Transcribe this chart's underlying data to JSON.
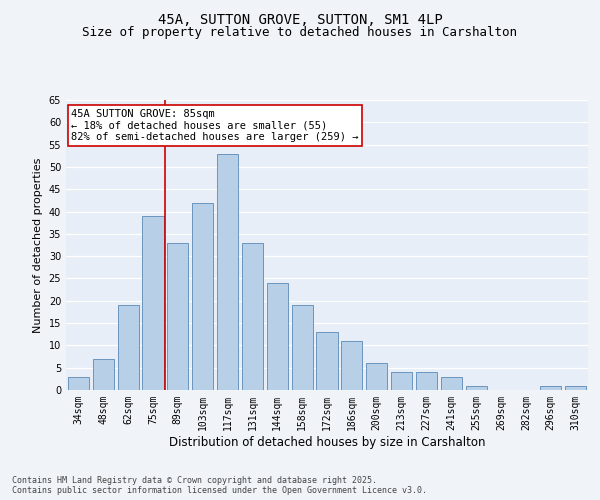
{
  "title": "45A, SUTTON GROVE, SUTTON, SM1 4LP",
  "subtitle": "Size of property relative to detached houses in Carshalton",
  "xlabel": "Distribution of detached houses by size in Carshalton",
  "ylabel": "Number of detached properties",
  "categories": [
    "34sqm",
    "48sqm",
    "62sqm",
    "75sqm",
    "89sqm",
    "103sqm",
    "117sqm",
    "131sqm",
    "144sqm",
    "158sqm",
    "172sqm",
    "186sqm",
    "200sqm",
    "213sqm",
    "227sqm",
    "241sqm",
    "255sqm",
    "269sqm",
    "282sqm",
    "296sqm",
    "310sqm"
  ],
  "values": [
    3,
    7,
    19,
    39,
    33,
    42,
    53,
    33,
    24,
    19,
    13,
    11,
    6,
    4,
    4,
    3,
    1,
    0,
    0,
    1,
    1
  ],
  "bar_color": "#b8cfe8",
  "bar_edge_color": "#5a8ab5",
  "vline_x": 3.5,
  "vline_color": "#cc0000",
  "annotation_text": "45A SUTTON GROVE: 85sqm\n← 18% of detached houses are smaller (55)\n82% of semi-detached houses are larger (259) →",
  "annotation_box_color": "#ffffff",
  "annotation_box_edge": "#cc0000",
  "ylim": [
    0,
    65
  ],
  "yticks": [
    0,
    5,
    10,
    15,
    20,
    25,
    30,
    35,
    40,
    45,
    50,
    55,
    60,
    65
  ],
  "bg_color": "#e8eef7",
  "grid_color": "#ffffff",
  "footer": "Contains HM Land Registry data © Crown copyright and database right 2025.\nContains public sector information licensed under the Open Government Licence v3.0.",
  "title_fontsize": 10,
  "subtitle_fontsize": 9,
  "xlabel_fontsize": 8.5,
  "ylabel_fontsize": 8,
  "tick_fontsize": 7,
  "annotation_fontsize": 7.5,
  "footer_fontsize": 6
}
